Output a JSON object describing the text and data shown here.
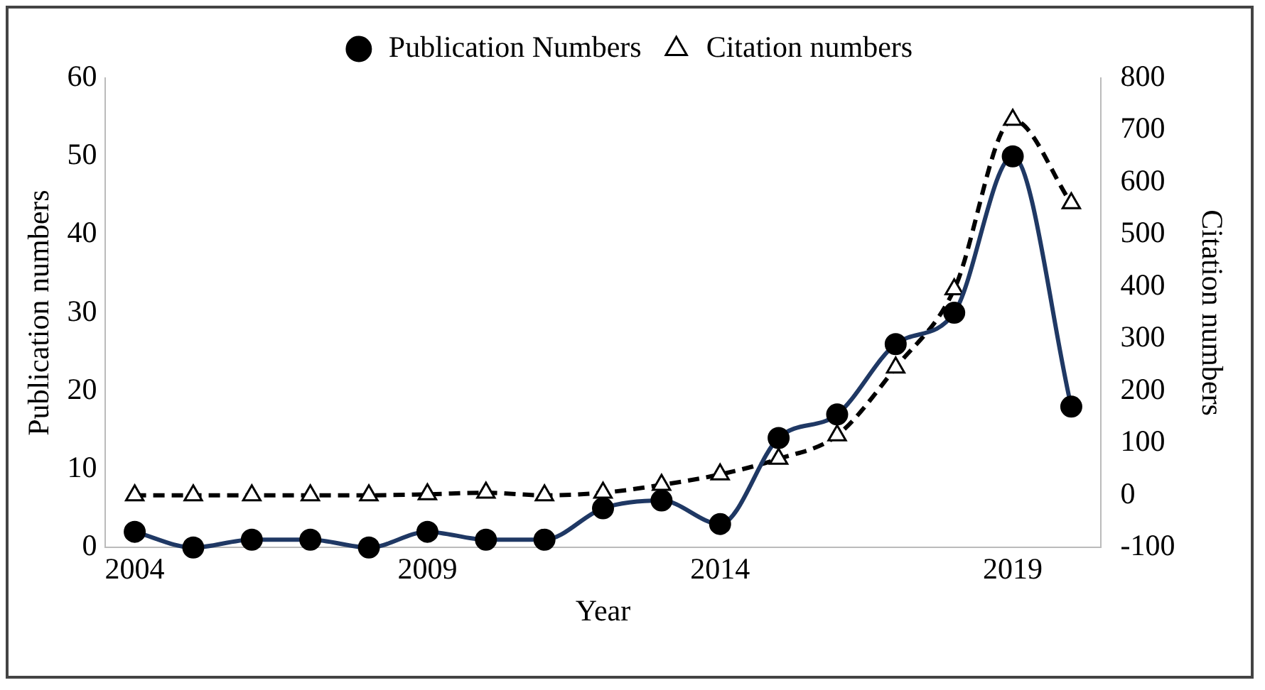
{
  "chart_data": {
    "type": "line",
    "xlabel": "Year",
    "ylabel": "Publication numbers",
    "y2label": "Citation numbers",
    "categories": [
      "2004",
      null,
      null,
      null,
      null,
      "2009",
      null,
      null,
      null,
      null,
      "2014",
      null,
      null,
      null,
      null,
      "2019",
      null
    ],
    "series": [
      {
        "name": "Publication Numbers",
        "color": "#1f3864",
        "marker": "circle",
        "line_style": "solid",
        "values": [
          2,
          0,
          1,
          1,
          0,
          2,
          1,
          1,
          5,
          6,
          3,
          14,
          17,
          26,
          30,
          50,
          18
        ]
      },
      {
        "name": "Citation numbers",
        "color": "#000000",
        "marker": "triangle",
        "line_style": "dashed",
        "axis": "y2",
        "values": [
          0,
          0,
          0,
          0,
          0,
          2,
          5,
          0,
          5,
          20,
          40,
          70,
          115,
          245,
          395,
          720,
          560
        ]
      }
    ],
    "ylim": [
      0,
      60
    ],
    "yticks": [
      0,
      10,
      20,
      30,
      40,
      50,
      60
    ],
    "y2lim": [
      -100,
      800
    ],
    "y2ticks": [
      -100,
      0,
      100,
      200,
      300,
      400,
      500,
      600,
      700,
      800
    ],
    "grid": false,
    "legend": "top"
  }
}
